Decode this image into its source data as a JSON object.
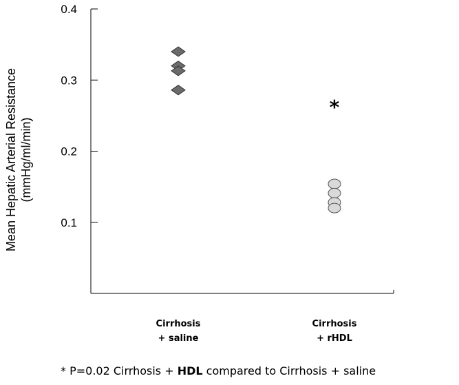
{
  "chart_data": {
    "type": "scatter",
    "ylabel_line1": "Mean Hepatic Arterial Resistance",
    "ylabel_line2": "(mmHg/ml/min)",
    "ylim": [
      0,
      0.4
    ],
    "yticks": [
      {
        "value": 0.1,
        "label": "0.1"
      },
      {
        "value": 0.2,
        "label": "0.2"
      },
      {
        "value": 0.3,
        "label": "0.3"
      },
      {
        "value": 0.4,
        "label": "0.4"
      }
    ],
    "grid": false,
    "categories": [
      {
        "line1": "Cirrhosis",
        "line2": "+ saline"
      },
      {
        "line1": "Cirrhosis",
        "line2": "+ rHDL"
      }
    ],
    "series": [
      {
        "category_index": 0,
        "marker": "diamond",
        "color": "#6b6b6b",
        "values": [
          0.34,
          0.32,
          0.313,
          0.286
        ]
      },
      {
        "category_index": 1,
        "marker": "circle",
        "color": "#d9d9d9",
        "values": [
          0.154,
          0.141,
          0.128,
          0.12
        ]
      }
    ],
    "annotation": {
      "text": "*",
      "category_index": 1,
      "value": 0.27
    }
  },
  "footnote": {
    "part1": "* P=0.02 Cirrhosis + ",
    "bold": "HDL",
    "part2": " compared to Cirrhosis + saline"
  }
}
